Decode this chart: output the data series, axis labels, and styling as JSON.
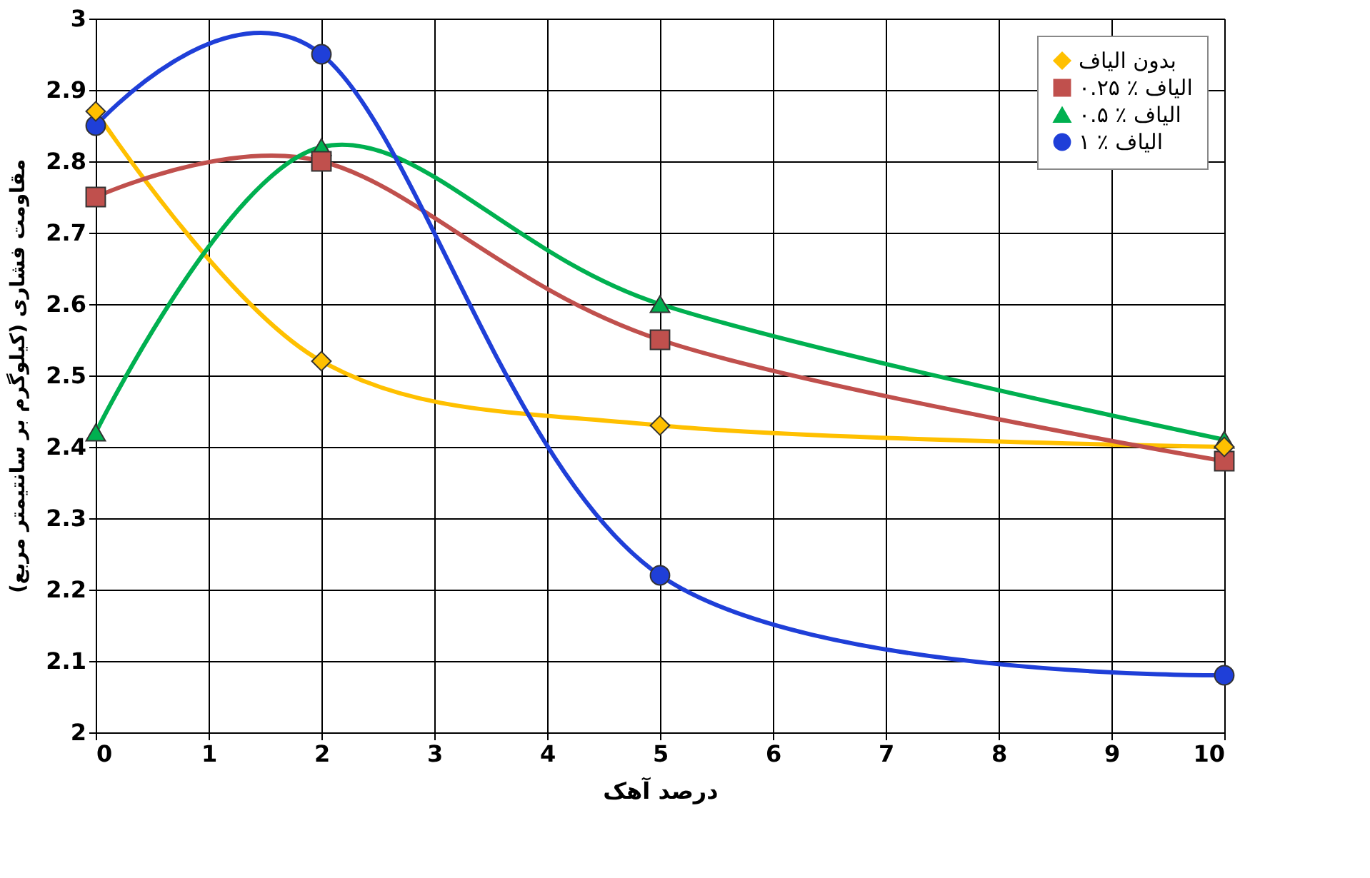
{
  "chart_data": {
    "type": "line",
    "xlabel": "درصد آهک",
    "ylabel": "مقاومت فشاری (کیلوگرم بر سانتیمتر مربع)",
    "x": [
      0,
      2,
      5,
      10
    ],
    "series": [
      {
        "name": "بدون الیاف",
        "color": "#ffc000",
        "marker": "diamond",
        "values": [
          2.87,
          2.52,
          2.43,
          2.4
        ]
      },
      {
        "name": "۰.۲۵ ٪ الیاف",
        "color": "#c0504d",
        "marker": "square",
        "values": [
          2.75,
          2.8,
          2.55,
          2.38
        ]
      },
      {
        "name": "۰.۵ ٪ الیاف",
        "color": "#00b050",
        "marker": "triangle",
        "values": [
          2.42,
          2.82,
          2.6,
          2.41
        ]
      },
      {
        "name": "۱ ٪ الیاف",
        "color": "#1f3fd8",
        "marker": "circle",
        "values": [
          2.85,
          2.95,
          2.22,
          2.08
        ]
      }
    ],
    "xlim": [
      0,
      10
    ],
    "xticks": [
      0,
      1,
      2,
      3,
      4,
      5,
      6,
      7,
      8,
      9,
      10
    ],
    "ylim": [
      2,
      3
    ],
    "yticks": [
      2,
      2.1,
      2.2,
      2.3,
      2.4,
      2.5,
      2.6,
      2.7,
      2.8,
      2.9,
      3
    ],
    "grid": true,
    "legend": "top right",
    "line_style": "solid"
  }
}
